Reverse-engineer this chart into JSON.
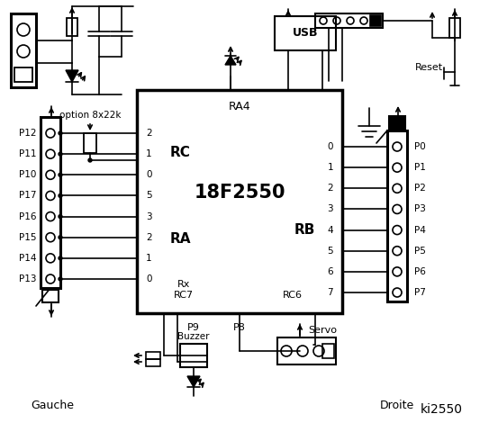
{
  "bg_color": "#ffffff",
  "title": "ki2550",
  "chip_label": "18F2550",
  "chip_ra4": "RA4",
  "chip_rc": "RC",
  "chip_ra": "RA",
  "chip_rb": "RB",
  "chip_rx": "Rx",
  "chip_rc7": "RC7",
  "chip_rc6": "RC6",
  "chip_usb": "USB",
  "left_pins": [
    "P12",
    "P11",
    "P10",
    "P17",
    "P16",
    "P15",
    "P14",
    "P13"
  ],
  "right_pins": [
    "P0",
    "P1",
    "P2",
    "P3",
    "P4",
    "P5",
    "P6",
    "P7"
  ],
  "rc_numbers": [
    "2",
    "1",
    "0"
  ],
  "ra_numbers": [
    "5",
    "3",
    "2",
    "1",
    "0"
  ],
  "rb_numbers": [
    "0",
    "1",
    "2",
    "3",
    "4",
    "5",
    "6",
    "7"
  ],
  "left_label": "Gauche",
  "right_label": "Droite",
  "reset_label": "Reset",
  "servo_label": "Servo",
  "buzzer_label": "Buzzer",
  "p8_label": "P8",
  "p9_label": "P9",
  "option_label": "option 8x22k"
}
